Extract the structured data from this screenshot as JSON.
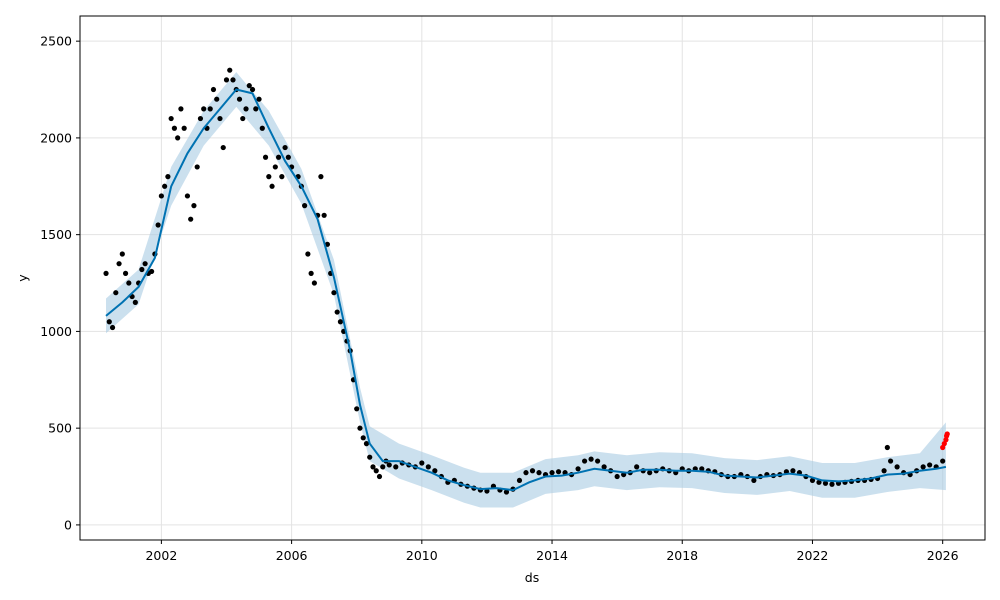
{
  "chart_data": {
    "type": "line",
    "title": "",
    "xlabel": "ds",
    "ylabel": "y",
    "xlim": [
      1999.5,
      2027.3
    ],
    "ylim": [
      -78,
      2630
    ],
    "x_ticks": [
      2002,
      2006,
      2010,
      2014,
      2018,
      2022,
      2026
    ],
    "x_tick_labels": [
      "2002",
      "2006",
      "2010",
      "2014",
      "2018",
      "2022",
      "2026"
    ],
    "y_ticks": [
      0,
      500,
      1000,
      1500,
      2000,
      2500
    ],
    "y_tick_labels": [
      "0",
      "500",
      "1000",
      "1500",
      "2000",
      "2500"
    ],
    "grid": true,
    "legend": "none",
    "colors": {
      "observed": "#000000",
      "forecast": "#0072B2",
      "interval": "#a8cbe3",
      "recent": "#ff0000"
    },
    "series": [
      {
        "role": "observed",
        "kind": "scatter",
        "points": [
          [
            2000.3,
            1300
          ],
          [
            2000.4,
            1050
          ],
          [
            2000.5,
            1020
          ],
          [
            2000.6,
            1200
          ],
          [
            2000.7,
            1350
          ],
          [
            2000.8,
            1400
          ],
          [
            2000.9,
            1300
          ],
          [
            2001.0,
            1250
          ],
          [
            2001.1,
            1180
          ],
          [
            2001.2,
            1150
          ],
          [
            2001.3,
            1250
          ],
          [
            2001.4,
            1320
          ],
          [
            2001.5,
            1350
          ],
          [
            2001.6,
            1300
          ],
          [
            2001.7,
            1310
          ],
          [
            2001.8,
            1400
          ],
          [
            2001.9,
            1550
          ],
          [
            2002.0,
            1700
          ],
          [
            2002.1,
            1750
          ],
          [
            2002.2,
            1800
          ],
          [
            2002.3,
            2100
          ],
          [
            2002.4,
            2050
          ],
          [
            2002.5,
            2000
          ],
          [
            2002.6,
            2150
          ],
          [
            2002.7,
            2050
          ],
          [
            2002.8,
            1700
          ],
          [
            2002.9,
            1580
          ],
          [
            2003.0,
            1650
          ],
          [
            2003.1,
            1850
          ],
          [
            2003.2,
            2100
          ],
          [
            2003.3,
            2150
          ],
          [
            2003.4,
            2050
          ],
          [
            2003.5,
            2150
          ],
          [
            2003.6,
            2250
          ],
          [
            2003.7,
            2200
          ],
          [
            2003.8,
            2100
          ],
          [
            2003.9,
            1950
          ],
          [
            2004.0,
            2300
          ],
          [
            2004.1,
            2350
          ],
          [
            2004.2,
            2300
          ],
          [
            2004.3,
            2250
          ],
          [
            2004.4,
            2200
          ],
          [
            2004.5,
            2100
          ],
          [
            2004.6,
            2150
          ],
          [
            2004.7,
            2270
          ],
          [
            2004.8,
            2250
          ],
          [
            2004.9,
            2150
          ],
          [
            2005.0,
            2200
          ],
          [
            2005.1,
            2050
          ],
          [
            2005.2,
            1900
          ],
          [
            2005.3,
            1800
          ],
          [
            2005.4,
            1750
          ],
          [
            2005.5,
            1850
          ],
          [
            2005.6,
            1900
          ],
          [
            2005.7,
            1800
          ],
          [
            2005.8,
            1950
          ],
          [
            2005.9,
            1900
          ],
          [
            2006.0,
            1850
          ],
          [
            2006.2,
            1800
          ],
          [
            2006.3,
            1750
          ],
          [
            2006.4,
            1650
          ],
          [
            2006.5,
            1400
          ],
          [
            2006.6,
            1300
          ],
          [
            2006.7,
            1250
          ],
          [
            2006.8,
            1600
          ],
          [
            2006.9,
            1800
          ],
          [
            2007.0,
            1600
          ],
          [
            2007.1,
            1450
          ],
          [
            2007.2,
            1300
          ],
          [
            2007.3,
            1200
          ],
          [
            2007.4,
            1100
          ],
          [
            2007.5,
            1050
          ],
          [
            2007.6,
            1000
          ],
          [
            2007.7,
            950
          ],
          [
            2007.8,
            900
          ],
          [
            2007.9,
            750
          ],
          [
            2008.0,
            600
          ],
          [
            2008.1,
            500
          ],
          [
            2008.2,
            450
          ],
          [
            2008.3,
            420
          ],
          [
            2008.4,
            350
          ],
          [
            2008.5,
            300
          ],
          [
            2008.6,
            280
          ],
          [
            2008.7,
            250
          ],
          [
            2008.8,
            300
          ],
          [
            2008.9,
            330
          ],
          [
            2009.0,
            310
          ],
          [
            2009.2,
            300
          ],
          [
            2009.4,
            320
          ],
          [
            2009.6,
            310
          ],
          [
            2009.8,
            300
          ],
          [
            2010.0,
            320
          ],
          [
            2010.2,
            300
          ],
          [
            2010.4,
            280
          ],
          [
            2010.6,
            250
          ],
          [
            2010.8,
            220
          ],
          [
            2011.0,
            230
          ],
          [
            2011.2,
            210
          ],
          [
            2011.4,
            200
          ],
          [
            2011.6,
            190
          ],
          [
            2011.8,
            180
          ],
          [
            2012.0,
            175
          ],
          [
            2012.2,
            200
          ],
          [
            2012.4,
            180
          ],
          [
            2012.6,
            170
          ],
          [
            2012.8,
            185
          ],
          [
            2013.0,
            230
          ],
          [
            2013.2,
            270
          ],
          [
            2013.4,
            280
          ],
          [
            2013.6,
            270
          ],
          [
            2013.8,
            260
          ],
          [
            2014.0,
            270
          ],
          [
            2014.2,
            275
          ],
          [
            2014.4,
            270
          ],
          [
            2014.6,
            260
          ],
          [
            2014.8,
            290
          ],
          [
            2015.0,
            330
          ],
          [
            2015.2,
            340
          ],
          [
            2015.4,
            330
          ],
          [
            2015.6,
            300
          ],
          [
            2015.8,
            280
          ],
          [
            2016.0,
            250
          ],
          [
            2016.2,
            260
          ],
          [
            2016.4,
            270
          ],
          [
            2016.6,
            300
          ],
          [
            2016.8,
            280
          ],
          [
            2017.0,
            270
          ],
          [
            2017.2,
            280
          ],
          [
            2017.4,
            290
          ],
          [
            2017.6,
            280
          ],
          [
            2017.8,
            270
          ],
          [
            2018.0,
            290
          ],
          [
            2018.2,
            280
          ],
          [
            2018.4,
            290
          ],
          [
            2018.6,
            290
          ],
          [
            2018.8,
            280
          ],
          [
            2019.0,
            275
          ],
          [
            2019.2,
            260
          ],
          [
            2019.4,
            250
          ],
          [
            2019.6,
            250
          ],
          [
            2019.8,
            260
          ],
          [
            2020.0,
            250
          ],
          [
            2020.2,
            230
          ],
          [
            2020.4,
            250
          ],
          [
            2020.6,
            260
          ],
          [
            2020.8,
            255
          ],
          [
            2021.0,
            260
          ],
          [
            2021.2,
            275
          ],
          [
            2021.4,
            280
          ],
          [
            2021.6,
            270
          ],
          [
            2021.8,
            250
          ],
          [
            2022.0,
            230
          ],
          [
            2022.2,
            220
          ],
          [
            2022.4,
            215
          ],
          [
            2022.6,
            210
          ],
          [
            2022.8,
            215
          ],
          [
            2023.0,
            220
          ],
          [
            2023.2,
            225
          ],
          [
            2023.4,
            230
          ],
          [
            2023.6,
            230
          ],
          [
            2023.8,
            235
          ],
          [
            2024.0,
            240
          ],
          [
            2024.2,
            280
          ],
          [
            2024.3,
            400
          ],
          [
            2024.4,
            330
          ],
          [
            2024.6,
            300
          ],
          [
            2024.8,
            270
          ],
          [
            2025.0,
            260
          ],
          [
            2025.2,
            280
          ],
          [
            2025.4,
            300
          ],
          [
            2025.6,
            310
          ],
          [
            2025.8,
            300
          ],
          [
            2026.0,
            330
          ]
        ]
      },
      {
        "role": "recent",
        "kind": "scatter",
        "points": [
          [
            2026.0,
            400
          ],
          [
            2026.05,
            420
          ],
          [
            2026.1,
            440
          ],
          [
            2026.12,
            460
          ],
          [
            2026.14,
            470
          ]
        ]
      },
      {
        "role": "forecast",
        "kind": "line",
        "points": [
          [
            2000.3,
            1080
          ],
          [
            2000.8,
            1150
          ],
          [
            2001.3,
            1230
          ],
          [
            2001.8,
            1380
          ],
          [
            2002.3,
            1750
          ],
          [
            2002.8,
            1920
          ],
          [
            2003.3,
            2050
          ],
          [
            2003.8,
            2150
          ],
          [
            2004.3,
            2250
          ],
          [
            2004.8,
            2230
          ],
          [
            2005.3,
            2050
          ],
          [
            2005.8,
            1880
          ],
          [
            2006.3,
            1750
          ],
          [
            2006.8,
            1580
          ],
          [
            2007.3,
            1280
          ],
          [
            2007.8,
            900
          ],
          [
            2008.1,
            620
          ],
          [
            2008.4,
            420
          ],
          [
            2008.8,
            330
          ],
          [
            2009.3,
            330
          ],
          [
            2009.8,
            300
          ],
          [
            2010.3,
            270
          ],
          [
            2010.8,
            230
          ],
          [
            2011.3,
            205
          ],
          [
            2011.8,
            185
          ],
          [
            2012.3,
            190
          ],
          [
            2012.8,
            180
          ],
          [
            2013.3,
            220
          ],
          [
            2013.8,
            250
          ],
          [
            2014.3,
            255
          ],
          [
            2014.8,
            270
          ],
          [
            2015.3,
            290
          ],
          [
            2015.8,
            280
          ],
          [
            2016.3,
            270
          ],
          [
            2016.8,
            285
          ],
          [
            2017.3,
            285
          ],
          [
            2017.8,
            280
          ],
          [
            2018.3,
            280
          ],
          [
            2018.8,
            275
          ],
          [
            2019.3,
            255
          ],
          [
            2019.8,
            250
          ],
          [
            2020.3,
            245
          ],
          [
            2020.8,
            255
          ],
          [
            2021.3,
            265
          ],
          [
            2021.8,
            255
          ],
          [
            2022.3,
            230
          ],
          [
            2022.8,
            225
          ],
          [
            2023.3,
            230
          ],
          [
            2023.8,
            240
          ],
          [
            2024.3,
            260
          ],
          [
            2024.8,
            265
          ],
          [
            2025.3,
            280
          ],
          [
            2025.8,
            290
          ],
          [
            2026.1,
            300
          ]
        ]
      },
      {
        "role": "interval",
        "kind": "band",
        "points": [
          [
            2000.3,
            990,
            1170
          ],
          [
            2001.3,
            1140,
            1320
          ],
          [
            2002.3,
            1650,
            1850
          ],
          [
            2003.3,
            1960,
            2140
          ],
          [
            2004.3,
            2160,
            2340
          ],
          [
            2005.3,
            1960,
            2140
          ],
          [
            2006.3,
            1660,
            1840
          ],
          [
            2007.3,
            1190,
            1370
          ],
          [
            2008.1,
            530,
            710
          ],
          [
            2008.4,
            330,
            510
          ],
          [
            2009.3,
            240,
            420
          ],
          [
            2010.3,
            180,
            360
          ],
          [
            2011.3,
            115,
            295
          ],
          [
            2011.8,
            90,
            270
          ],
          [
            2012.8,
            90,
            270
          ],
          [
            2013.8,
            160,
            340
          ],
          [
            2014.8,
            180,
            360
          ],
          [
            2015.3,
            200,
            380
          ],
          [
            2016.3,
            180,
            360
          ],
          [
            2017.3,
            195,
            375
          ],
          [
            2018.3,
            190,
            370
          ],
          [
            2019.3,
            165,
            345
          ],
          [
            2020.3,
            155,
            335
          ],
          [
            2021.3,
            175,
            355
          ],
          [
            2022.3,
            140,
            320
          ],
          [
            2023.3,
            140,
            320
          ],
          [
            2024.3,
            170,
            350
          ],
          [
            2025.3,
            190,
            370
          ],
          [
            2026.1,
            180,
            530
          ]
        ]
      }
    ]
  }
}
